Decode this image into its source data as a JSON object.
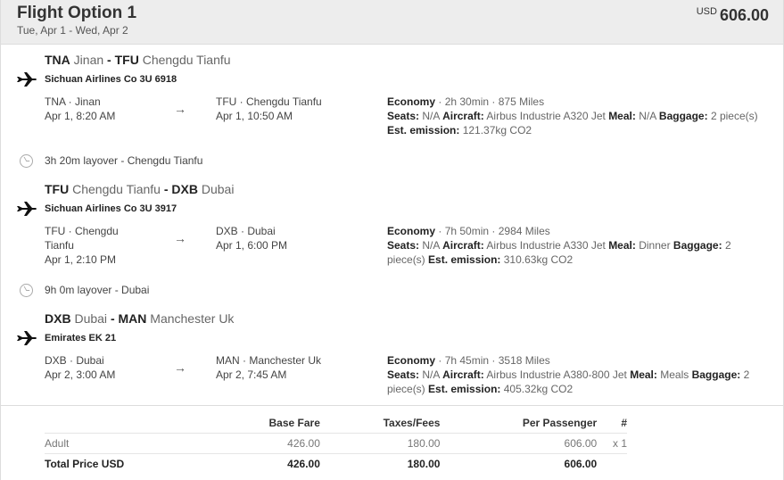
{
  "header": {
    "title": "Flight Option 1",
    "dates": "Tue, Apr 1 - Wed, Apr 2",
    "currency": "USD",
    "price": "606.00"
  },
  "segments": [
    {
      "from_code": "TNA",
      "from_city": "Jinan",
      "to_code": "TFU",
      "to_city": "Chengdu Tianfu",
      "airline": "Sichuan Airlines Co 3U 6918",
      "dep_place": "TNA · Jinan",
      "dep_time": "Apr 1, 8:20 AM",
      "arr_place": "TFU · Chengdu Tianfu",
      "arr_time": "Apr 1, 10:50 AM",
      "cabin": "Economy",
      "duration": "2h 30min",
      "distance": "875 Miles",
      "seats": "N/A",
      "aircraft": "Airbus Industrie A320 Jet",
      "meal": "N/A",
      "baggage": "2 piece(s)",
      "emission": "121.37kg CO2"
    },
    {
      "from_code": "TFU",
      "from_city": "Chengdu Tianfu",
      "to_code": "DXB",
      "to_city": "Dubai",
      "airline": "Sichuan Airlines Co 3U 3917",
      "dep_place": "TFU · Chengdu Tianfu",
      "dep_time": "Apr 1, 2:10 PM",
      "arr_place": "DXB · Dubai",
      "arr_time": "Apr 1, 6:00 PM",
      "cabin": "Economy",
      "duration": "7h 50min",
      "distance": "2984 Miles",
      "seats": "N/A",
      "aircraft": "Airbus Industrie A330 Jet",
      "meal": "Dinner",
      "baggage": "2 piece(s)",
      "emission": "310.63kg CO2"
    },
    {
      "from_code": "DXB",
      "from_city": "Dubai",
      "to_code": "MAN",
      "to_city": "Manchester Uk",
      "airline": "Emirates EK 21",
      "dep_place": "DXB · Dubai",
      "dep_time": "Apr 2, 3:00 AM",
      "arr_place": "MAN · Manchester Uk",
      "arr_time": "Apr 2, 7:45 AM",
      "cabin": "Economy",
      "duration": "7h 45min",
      "distance": "3518 Miles",
      "seats": "N/A",
      "aircraft": "Airbus Industrie A380-800 Jet",
      "meal": "Meals",
      "baggage": "2 piece(s)",
      "emission": "405.32kg CO2"
    }
  ],
  "labels": {
    "seats": "Seats:",
    "aircraft": "Aircraft:",
    "meal": "Meal:",
    "baggage": "Baggage:",
    "emission": "Est. emission:"
  },
  "layovers": [
    "3h 20m layover - Chengdu Tianfu",
    "9h 0m layover - Dubai"
  ],
  "fare_table": {
    "headers": [
      "",
      "Base Fare",
      "Taxes/Fees",
      "Per Passenger",
      "#"
    ],
    "rows": [
      [
        "Adult",
        "426.00",
        "180.00",
        "606.00",
        "x 1"
      ],
      [
        "Total Price USD",
        "426.00",
        "180.00",
        "606.00",
        ""
      ]
    ]
  }
}
